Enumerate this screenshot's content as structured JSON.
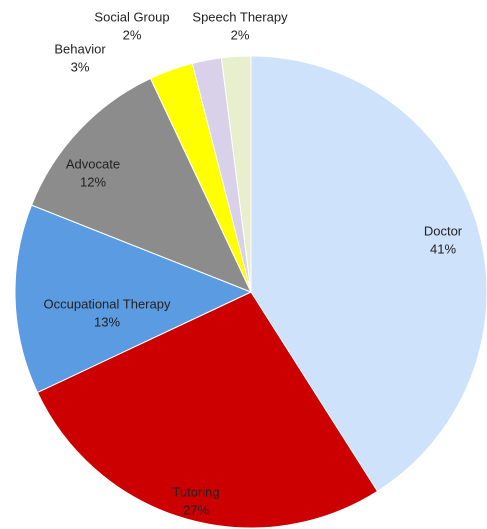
{
  "chart_data": {
    "type": "pie",
    "categories": [
      "Doctor",
      "Tutoring",
      "Occupational Therapy",
      "Advocate",
      "Behavior",
      "Social Group",
      "Speech Therapy"
    ],
    "values": [
      41,
      27,
      13,
      12,
      3,
      2,
      2
    ],
    "value_labels": [
      "41%",
      "27%",
      "13%",
      "12%",
      "3%",
      "2%",
      "2%"
    ],
    "colors": [
      "#cfe2fb",
      "#cc0000",
      "#5b9be2",
      "#8c8c8c",
      "#ffff00",
      "#d9d1ea",
      "#e7efcd"
    ]
  }
}
